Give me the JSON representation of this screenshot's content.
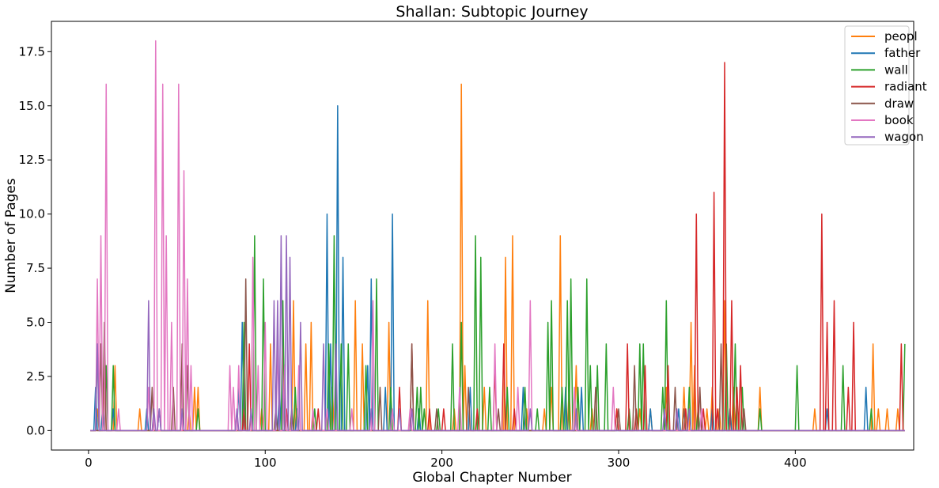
{
  "chart_data": {
    "type": "line",
    "title": "Shallan: Subtopic Journey",
    "xlabel": "Global Chapter Number",
    "ylabel": "Number of Pages",
    "xlim": [
      -21,
      467
    ],
    "ylim": [
      -0.9,
      18.9
    ],
    "xticks": [
      0,
      100,
      200,
      300,
      400
    ],
    "yticks": [
      0.0,
      2.5,
      5.0,
      7.5,
      10.0,
      12.5,
      15.0,
      17.5
    ],
    "ytick_labels": [
      "0.0",
      "2.5",
      "5.0",
      "7.5",
      "10.0",
      "12.5",
      "15.0",
      "17.5"
    ],
    "x_start": 1,
    "x_end": 462,
    "grid": false,
    "legend_position": "top-right",
    "series": [
      {
        "name": "peopl",
        "color": "#ff7f0e",
        "spikes": [
          [
            5,
            1
          ],
          [
            9,
            3
          ],
          [
            15,
            3
          ],
          [
            29,
            1
          ],
          [
            57,
            1
          ],
          [
            60,
            2
          ],
          [
            62,
            2
          ],
          [
            98,
            1
          ],
          [
            103,
            4
          ],
          [
            110,
            4
          ],
          [
            116,
            6
          ],
          [
            123,
            4
          ],
          [
            126,
            5
          ],
          [
            138,
            2
          ],
          [
            151,
            6
          ],
          [
            155,
            4
          ],
          [
            170,
            5
          ],
          [
            192,
            6
          ],
          [
            207,
            1
          ],
          [
            211,
            16
          ],
          [
            213,
            3
          ],
          [
            224,
            2
          ],
          [
            236,
            8
          ],
          [
            240,
            9
          ],
          [
            248,
            1
          ],
          [
            258,
            1
          ],
          [
            262,
            2
          ],
          [
            267,
            9
          ],
          [
            272,
            2
          ],
          [
            276,
            3
          ],
          [
            285,
            1
          ],
          [
            299,
            1
          ],
          [
            312,
            1
          ],
          [
            318,
            1
          ],
          [
            327,
            2
          ],
          [
            337,
            2
          ],
          [
            341,
            5
          ],
          [
            343,
            3
          ],
          [
            350,
            1
          ],
          [
            353,
            2
          ],
          [
            357,
            1
          ],
          [
            360,
            6
          ],
          [
            365,
            2
          ],
          [
            380,
            2
          ],
          [
            411,
            1
          ],
          [
            444,
            4
          ],
          [
            447,
            1
          ],
          [
            452,
            1
          ],
          [
            458,
            1
          ]
        ]
      },
      {
        "name": "father",
        "color": "#1f77b4",
        "spikes": [
          [
            4,
            2
          ],
          [
            8,
            1
          ],
          [
            14,
            1
          ],
          [
            33,
            1
          ],
          [
            40,
            1
          ],
          [
            85,
            2
          ],
          [
            87,
            5
          ],
          [
            108,
            2
          ],
          [
            118,
            1
          ],
          [
            135,
            10
          ],
          [
            137,
            4
          ],
          [
            141,
            15
          ],
          [
            144,
            8
          ],
          [
            158,
            3
          ],
          [
            160,
            7
          ],
          [
            168,
            2
          ],
          [
            172,
            10
          ],
          [
            187,
            1
          ],
          [
            216,
            2
          ],
          [
            246,
            2
          ],
          [
            270,
            2
          ],
          [
            279,
            2
          ],
          [
            318,
            1
          ],
          [
            334,
            1
          ],
          [
            353,
            1
          ],
          [
            363,
            1
          ],
          [
            418,
            1
          ],
          [
            440,
            2
          ]
        ]
      },
      {
        "name": "wall",
        "color": "#2ca02c",
        "spikes": [
          [
            5,
            4
          ],
          [
            10,
            3
          ],
          [
            14,
            3
          ],
          [
            62,
            1
          ],
          [
            88,
            5
          ],
          [
            94,
            9
          ],
          [
            99,
            7
          ],
          [
            110,
            6
          ],
          [
            117,
            2
          ],
          [
            128,
            1
          ],
          [
            136,
            4
          ],
          [
            139,
            9
          ],
          [
            143,
            4
          ],
          [
            147,
            4
          ],
          [
            157,
            3
          ],
          [
            163,
            7
          ],
          [
            171,
            2
          ],
          [
            186,
            2
          ],
          [
            188,
            2
          ],
          [
            190,
            1
          ],
          [
            198,
            1
          ],
          [
            206,
            4
          ],
          [
            211,
            5
          ],
          [
            219,
            9
          ],
          [
            222,
            8
          ],
          [
            227,
            2
          ],
          [
            237,
            2
          ],
          [
            247,
            2
          ],
          [
            254,
            1
          ],
          [
            260,
            5
          ],
          [
            262,
            6
          ],
          [
            268,
            2
          ],
          [
            271,
            6
          ],
          [
            273,
            7
          ],
          [
            277,
            2
          ],
          [
            282,
            7
          ],
          [
            284,
            3
          ],
          [
            288,
            3
          ],
          [
            293,
            4
          ],
          [
            306,
            1
          ],
          [
            312,
            4
          ],
          [
            314,
            4
          ],
          [
            325,
            2
          ],
          [
            327,
            6
          ],
          [
            340,
            2
          ],
          [
            345,
            1
          ],
          [
            361,
            4
          ],
          [
            366,
            4
          ],
          [
            370,
            2
          ],
          [
            380,
            1
          ],
          [
            401,
            3
          ],
          [
            427,
            3
          ],
          [
            443,
            1
          ],
          [
            462,
            4
          ]
        ]
      },
      {
        "name": "radiant",
        "color": "#d62728",
        "spikes": [
          [
            88,
            1
          ],
          [
            91,
            4
          ],
          [
            112,
            1
          ],
          [
            130,
            1
          ],
          [
            176,
            2
          ],
          [
            183,
            4
          ],
          [
            193,
            1
          ],
          [
            201,
            1
          ],
          [
            220,
            1
          ],
          [
            230,
            3
          ],
          [
            235,
            4
          ],
          [
            241,
            1
          ],
          [
            299,
            1
          ],
          [
            305,
            4
          ],
          [
            310,
            1
          ],
          [
            315,
            3
          ],
          [
            328,
            3
          ],
          [
            338,
            1
          ],
          [
            344,
            10
          ],
          [
            348,
            1
          ],
          [
            354,
            11
          ],
          [
            356,
            1
          ],
          [
            360,
            17
          ],
          [
            364,
            6
          ],
          [
            367,
            2
          ],
          [
            369,
            3
          ],
          [
            415,
            10
          ],
          [
            418,
            5
          ],
          [
            422,
            6
          ],
          [
            430,
            2
          ],
          [
            433,
            5
          ],
          [
            460,
            4
          ]
        ]
      },
      {
        "name": "draw",
        "color": "#8c564b",
        "spikes": [
          [
            7,
            4
          ],
          [
            9,
            5
          ],
          [
            36,
            2
          ],
          [
            48,
            2
          ],
          [
            53,
            4
          ],
          [
            56,
            3
          ],
          [
            89,
            7
          ],
          [
            106,
            1
          ],
          [
            115,
            1
          ],
          [
            165,
            2
          ],
          [
            183,
            4
          ],
          [
            197,
            1
          ],
          [
            215,
            2
          ],
          [
            232,
            1
          ],
          [
            287,
            2
          ],
          [
            300,
            1
          ],
          [
            309,
            3
          ],
          [
            332,
            2
          ],
          [
            337,
            1
          ],
          [
            346,
            2
          ],
          [
            358,
            4
          ],
          [
            371,
            1
          ]
        ]
      },
      {
        "name": "book",
        "color": "#e377c2",
        "spikes": [
          [
            5,
            7
          ],
          [
            7,
            9
          ],
          [
            10,
            16
          ],
          [
            17,
            1
          ],
          [
            34,
            2
          ],
          [
            38,
            18
          ],
          [
            42,
            16
          ],
          [
            44,
            9
          ],
          [
            47,
            5
          ],
          [
            51,
            16
          ],
          [
            54,
            12
          ],
          [
            56,
            7
          ],
          [
            58,
            3
          ],
          [
            80,
            3
          ],
          [
            82,
            2
          ],
          [
            85,
            3
          ],
          [
            93,
            8
          ],
          [
            96,
            3
          ],
          [
            100,
            5
          ],
          [
            107,
            4
          ],
          [
            111,
            3
          ],
          [
            119,
            3
          ],
          [
            127,
            1
          ],
          [
            135,
            1
          ],
          [
            149,
            1
          ],
          [
            161,
            6
          ],
          [
            172,
            1
          ],
          [
            182,
            1
          ],
          [
            210,
            2
          ],
          [
            230,
            4
          ],
          [
            243,
            2
          ],
          [
            250,
            6
          ],
          [
            275,
            2
          ],
          [
            297,
            2
          ],
          [
            347,
            1
          ]
        ]
      },
      {
        "name": "wagon",
        "color": "#9467bd",
        "spikes": [
          [
            5,
            4
          ],
          [
            34,
            6
          ],
          [
            37,
            1
          ],
          [
            40,
            1
          ],
          [
            53,
            1
          ],
          [
            84,
            1
          ],
          [
            92,
            1
          ],
          [
            105,
            6
          ],
          [
            107,
            6
          ],
          [
            109,
            9
          ],
          [
            112,
            9
          ],
          [
            114,
            8
          ],
          [
            120,
            5
          ],
          [
            133,
            4
          ],
          [
            140,
            4
          ],
          [
            160,
            1
          ],
          [
            176,
            1
          ],
          [
            183,
            1
          ],
          [
            250,
            1
          ],
          [
            276,
            1
          ],
          [
            326,
            1
          ],
          [
            333,
            1
          ],
          [
            340,
            1
          ]
        ]
      }
    ]
  }
}
